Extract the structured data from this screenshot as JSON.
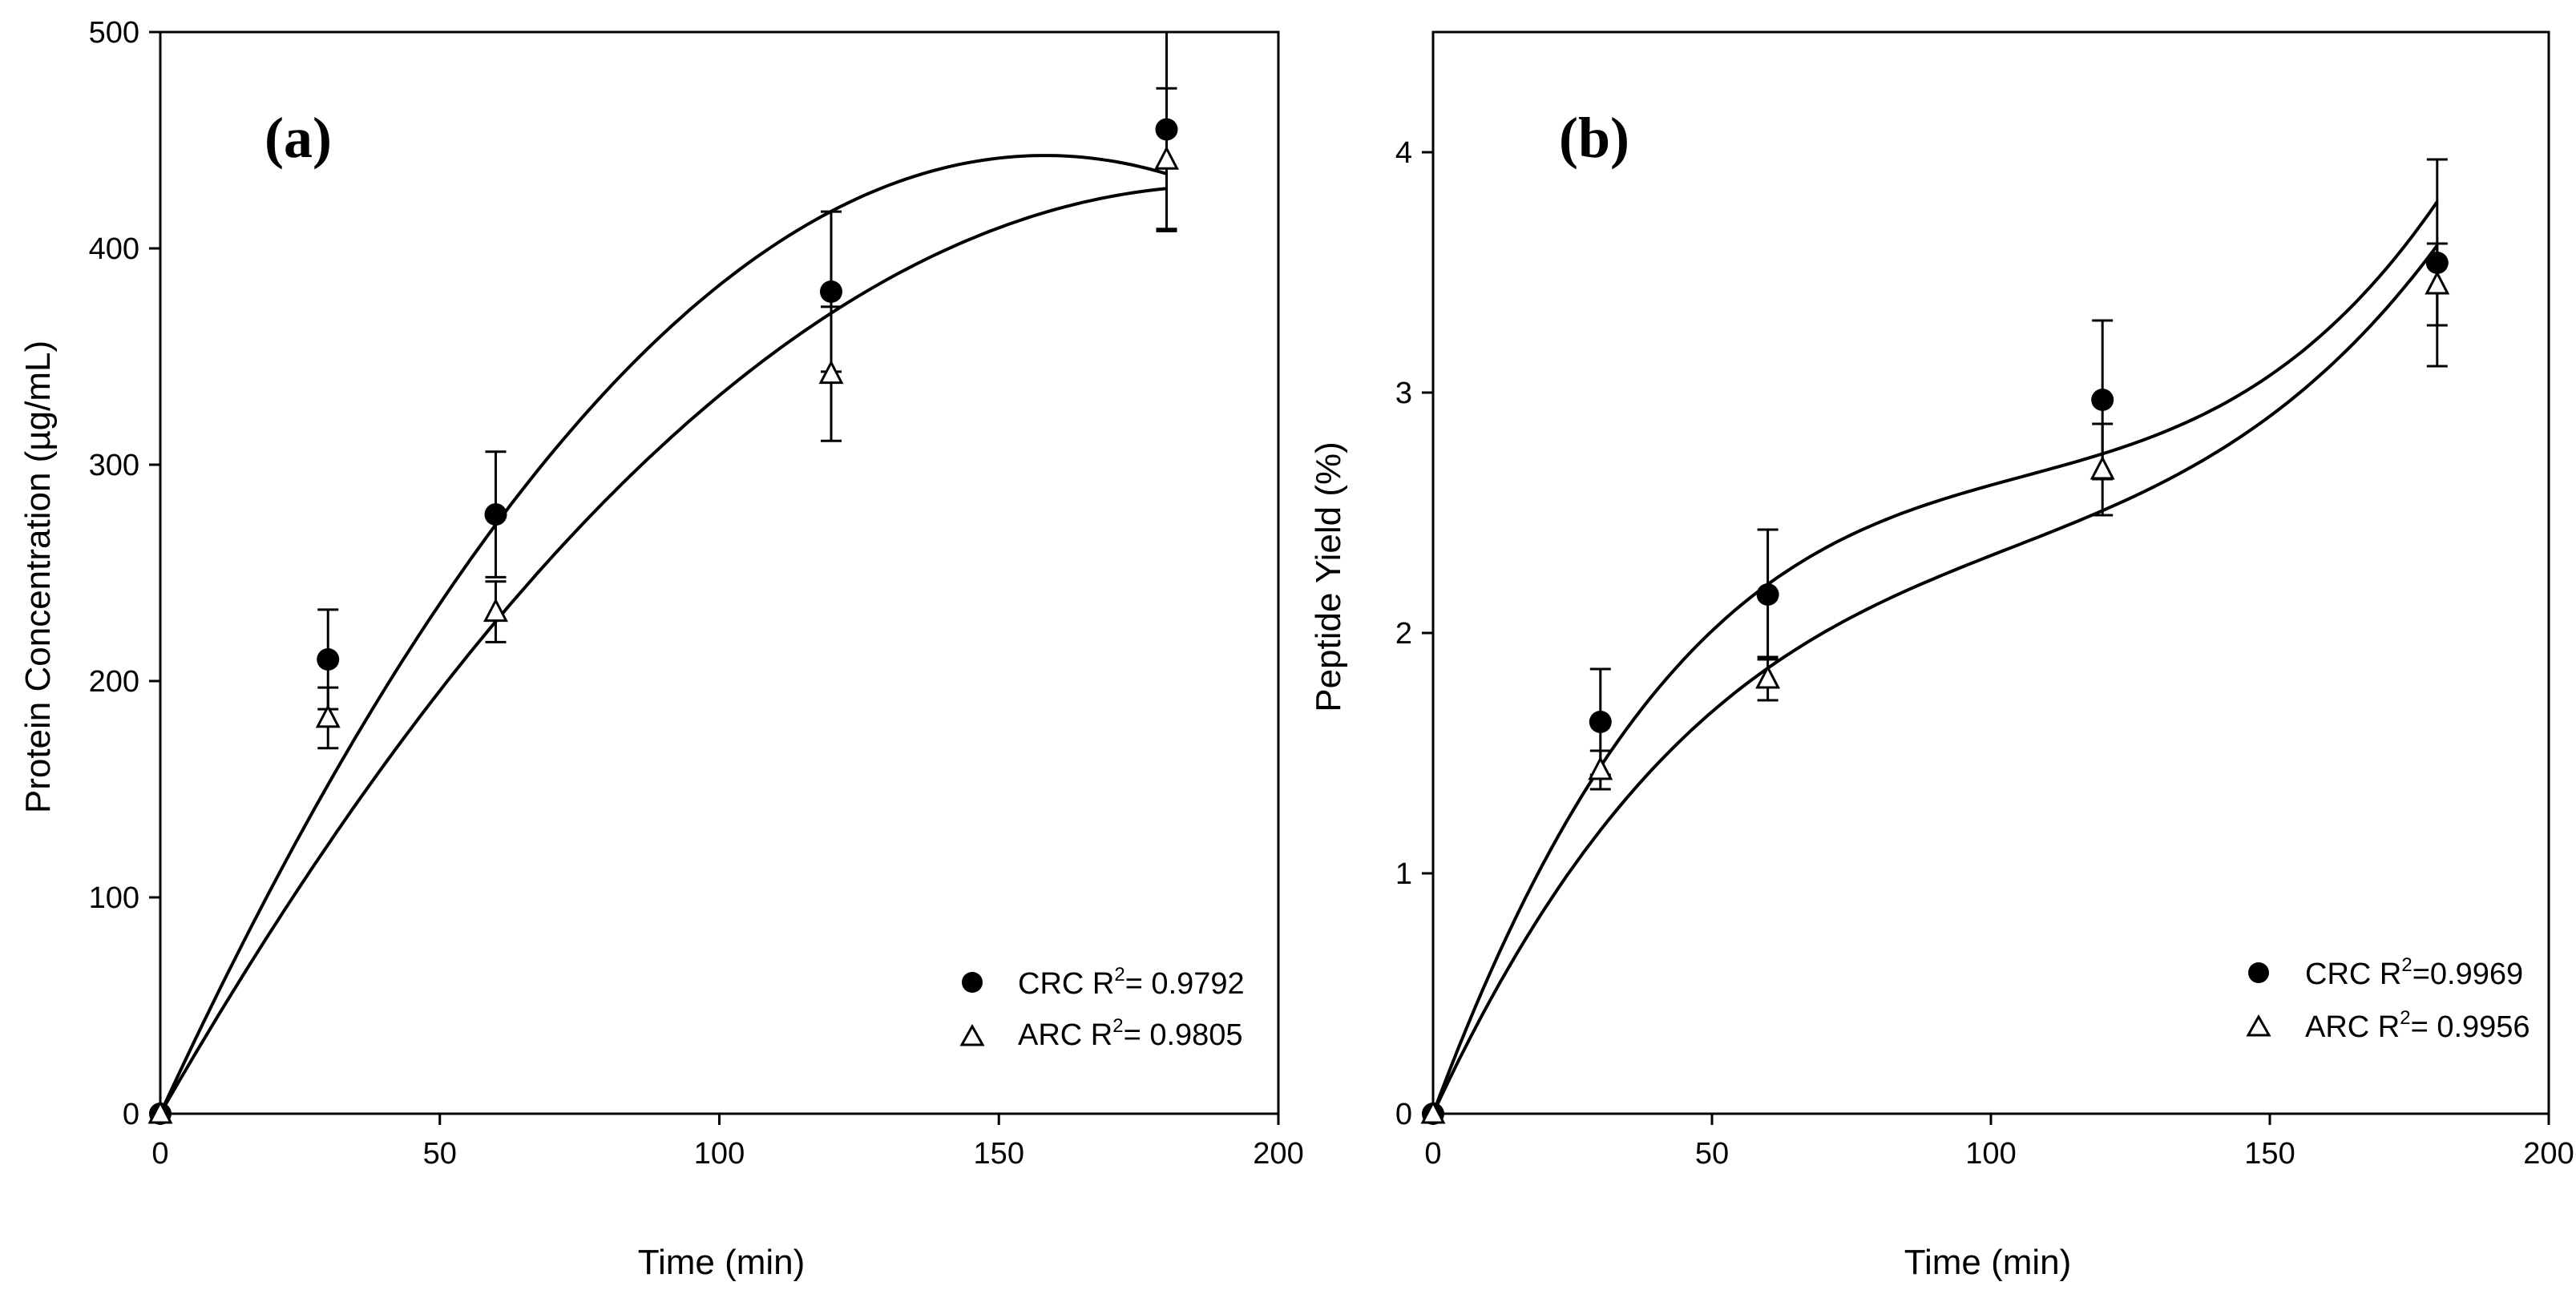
{
  "chart_data": [
    {
      "type": "scatter",
      "panel_label": "a",
      "title": "",
      "xlabel": "Time (min)",
      "ylabel": "Protein Concentration (µg/mL)",
      "xlim": [
        0,
        200
      ],
      "ylim": [
        0,
        500
      ],
      "xticks": [
        0,
        50,
        100,
        150,
        200
      ],
      "yticks": [
        0,
        100,
        200,
        300,
        400,
        500
      ],
      "grid": false,
      "legend_position": "bottom-right",
      "series": [
        {
          "name": "CRC",
          "legend_prefix": "CRC R",
          "legend_suffix": "= 0.9792",
          "marker": "filled-circle",
          "x": [
            0,
            30,
            60,
            120,
            180
          ],
          "y": [
            0,
            210,
            277,
            380,
            455
          ],
          "err": [
            0,
            23,
            29,
            37,
            46
          ],
          "fit": {
            "type": "quadratic",
            "coefficients": [
              0,
              5.6,
              -0.0177
            ]
          }
        },
        {
          "name": "ARC",
          "legend_prefix": "ARC R",
          "legend_suffix": "= 0.9805",
          "marker": "open-triangle",
          "x": [
            0,
            30,
            60,
            120,
            180
          ],
          "y": [
            0,
            183,
            232,
            342,
            441
          ],
          "err": [
            0,
            14,
            14,
            31,
            33
          ],
          "fit": {
            "type": "quadratic",
            "coefficients": [
              0,
              4.5,
              -0.0118
            ]
          }
        }
      ]
    },
    {
      "type": "scatter",
      "panel_label": "b",
      "title": "",
      "xlabel": "Time (min)",
      "ylabel": "Peptide Yield (%)",
      "xlim": [
        0,
        200
      ],
      "ylim": [
        0,
        4.5
      ],
      "xticks": [
        0,
        50,
        100,
        150,
        200
      ],
      "yticks": [
        0,
        1,
        2,
        3,
        4
      ],
      "grid": false,
      "legend_position": "bottom-right",
      "series": [
        {
          "name": "CRC",
          "legend_prefix": "CRC R",
          "legend_suffix": "=0.9969",
          "marker": "filled-circle",
          "x": [
            0,
            30,
            60,
            120,
            180
          ],
          "y": [
            0,
            1.63,
            2.16,
            2.97,
            3.54
          ],
          "err": [
            0,
            0.22,
            0.27,
            0.33,
            0.43
          ],
          "fit": {
            "type": "cubic",
            "coefficients": [
              0,
              0.06255,
              -0.000531,
              1.67e-06
            ]
          }
        },
        {
          "name": "ARC",
          "legend_prefix": "ARC R",
          "legend_suffix": "= 0.9956",
          "marker": "open-triangle",
          "x": [
            0,
            30,
            60,
            120,
            180
          ],
          "y": [
            0,
            1.43,
            1.81,
            2.68,
            3.45
          ],
          "err": [
            0,
            0.08,
            0.09,
            0.19,
            0.17
          ],
          "fit": {
            "type": "cubic",
            "coefficients": [
              0,
              0.05002,
              -0.000395,
              1.27e-06
            ]
          }
        }
      ]
    }
  ]
}
